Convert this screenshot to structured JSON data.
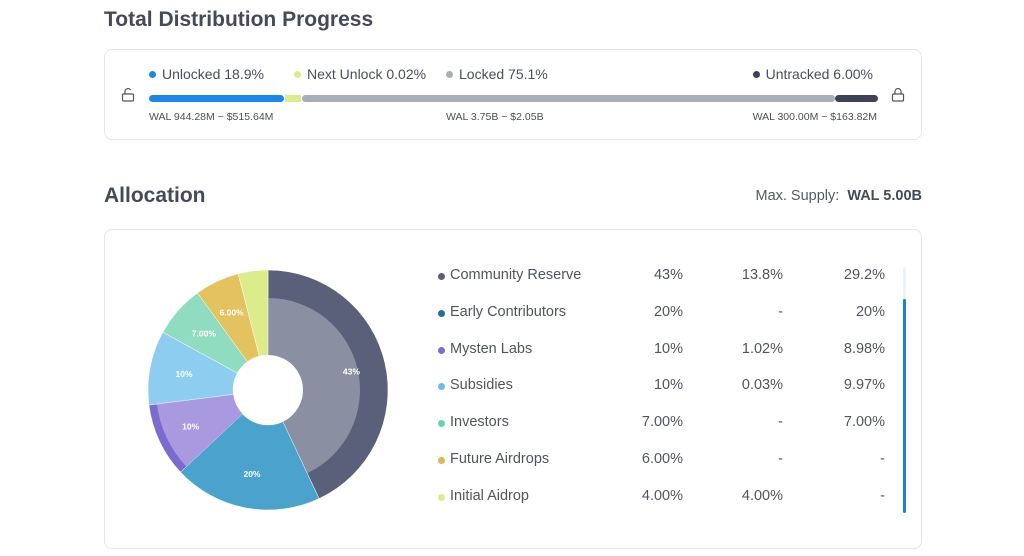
{
  "progress": {
    "title": "Total Distribution Progress",
    "segments": [
      {
        "label": "Unlocked 18.9%",
        "percent": 18.9,
        "color": "#1a86ee"
      },
      {
        "label": "Next Unlock 0.02%",
        "percent": 0.02,
        "color": "#dcec8a"
      },
      {
        "label": "Locked 75.1%",
        "percent": 75.1,
        "color": "#a9afb8"
      },
      {
        "label": "Untracked 6.00%",
        "percent": 6.0,
        "color": "#3d4256"
      }
    ],
    "unlocked_value": "WAL 944.28M ~ $515.64M",
    "locked_value": "WAL 3.75B ~ $2.05B",
    "untracked_value": "WAL 300.00M ~ $163.82M",
    "left_icon": "unlock-icon",
    "right_icon": "lock-icon"
  },
  "allocation": {
    "title": "Allocation",
    "max_supply_label": "Max. Supply:",
    "max_supply_value": "WAL 5.00B",
    "scroll_position": 0.13
  },
  "chart_data": {
    "type": "pie",
    "categories": [
      "Community Reserve",
      "Early Contributors",
      "Mysten Labs",
      "Subsidies",
      "Investors",
      "Future Airdrops",
      "Initial Aidrop"
    ],
    "values": [
      43,
      20,
      10,
      10,
      7,
      6,
      4
    ],
    "data_labels": [
      "43%",
      "20%",
      "10%",
      "10%",
      "7.00%",
      "6.00%",
      ""
    ],
    "colors": [
      "#5a607a",
      "#4aa3cc",
      "#a99ae0",
      "#8ccdf0",
      "#8fdcc0",
      "#e3c25f",
      "#dcec8a"
    ],
    "inner_colors": [
      "#8a90a2",
      null,
      "#a99ae0",
      null,
      null,
      null,
      null
    ],
    "band_colors": [
      "#5a607a",
      null,
      "#7b6bcf",
      null,
      null,
      null,
      null
    ],
    "rows": [
      {
        "name": "Community Reserve",
        "total": "43%",
        "unlocked": "13.8%",
        "locked": "29.2%",
        "dot": "#5a607a"
      },
      {
        "name": "Early Contributors",
        "total": "20%",
        "unlocked": "-",
        "locked": "20%",
        "dot": "#1f6f9b"
      },
      {
        "name": "Mysten Labs",
        "total": "10%",
        "unlocked": "1.02%",
        "locked": "8.98%",
        "dot": "#7b6bcf"
      },
      {
        "name": "Subsidies",
        "total": "10%",
        "unlocked": "0.03%",
        "locked": "9.97%",
        "dot": "#6cbde8"
      },
      {
        "name": "Investors",
        "total": "7.00%",
        "unlocked": "-",
        "locked": "7.00%",
        "dot": "#6fcfa8"
      },
      {
        "name": "Future Airdrops",
        "total": "6.00%",
        "unlocked": "-",
        "locked": "-",
        "dot": "#d8b85a"
      },
      {
        "name": "Initial Aidrop",
        "total": "4.00%",
        "unlocked": "4.00%",
        "locked": "-",
        "dot": "#dcec8a"
      }
    ]
  }
}
